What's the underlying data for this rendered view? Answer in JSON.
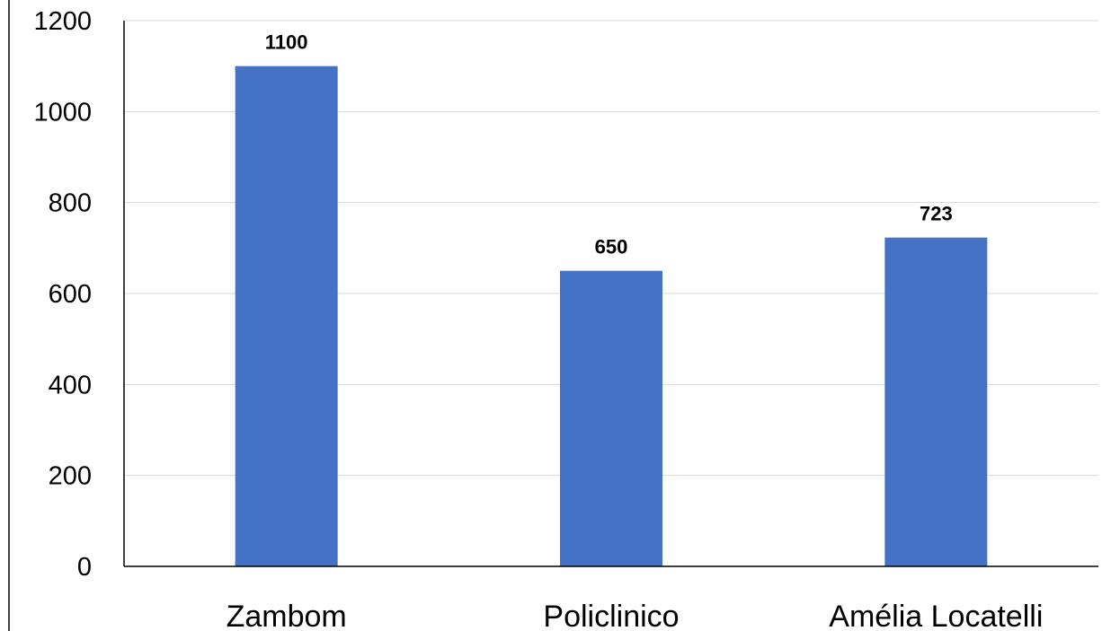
{
  "chart_data": {
    "type": "bar",
    "title": "",
    "xlabel": "",
    "ylabel": "",
    "categories": [
      "Zambom",
      "Policlinico",
      "Amélia Locatelli"
    ],
    "values": [
      1100,
      650,
      723
    ],
    "data_labels": [
      "1100",
      "650",
      "723"
    ],
    "ylim": [
      0,
      1200
    ],
    "yticks": [
      0,
      200,
      400,
      600,
      800,
      1000,
      1200
    ],
    "ytick_labels": [
      "0",
      "200",
      "400",
      "600",
      "800",
      "1000",
      "1200"
    ],
    "grid": true,
    "legend": "none",
    "colors": {
      "bar": "#4472c4",
      "grid": "#d9d9d9",
      "axis": "#000000",
      "text": "#000000"
    }
  }
}
